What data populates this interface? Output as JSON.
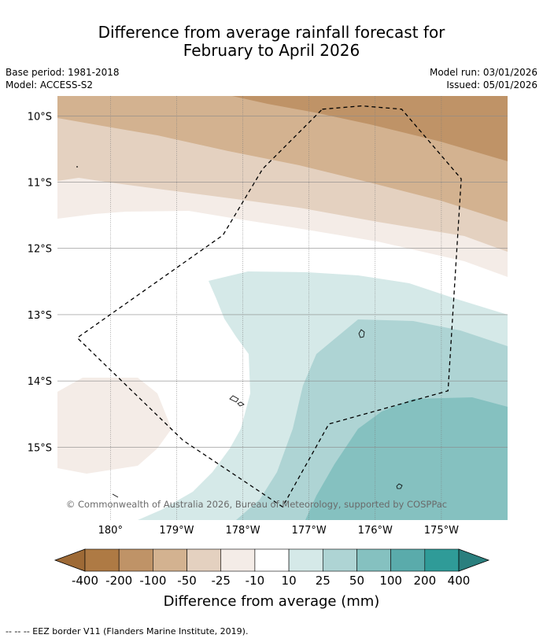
{
  "header": {
    "title_line1": "Difference from average rainfall forecast for",
    "title_line2": "February to April 2026",
    "base_period": "Base period: 1981-2018",
    "model": "Model: ACCESS-S2",
    "model_run": "Model run: 03/01/2026",
    "issued": "Issued: 05/01/2026"
  },
  "chart_data": {
    "type": "heatmap",
    "title": "Difference from average rainfall forecast for February to April 2026",
    "map_extent": {
      "lon_min": -180.8,
      "lon_max": -174.0,
      "lat_max": -9.7,
      "lat_min": -16.1
    },
    "x_ticks": [
      {
        "lon": -180,
        "label": "180°"
      },
      {
        "lon": -179,
        "label": "179°W"
      },
      {
        "lon": -178,
        "label": "178°W"
      },
      {
        "lon": -177,
        "label": "177°W"
      },
      {
        "lon": -176,
        "label": "176°W"
      },
      {
        "lon": -175,
        "label": "175°W"
      }
    ],
    "y_ticks": [
      {
        "lat": -10,
        "label": "10°S"
      },
      {
        "lat": -11,
        "label": "11°S"
      },
      {
        "lat": -12,
        "label": "12°S"
      },
      {
        "lat": -13,
        "label": "13°S"
      },
      {
        "lat": -14,
        "label": "14°S"
      },
      {
        "lat": -15,
        "label": "15°S"
      }
    ],
    "colorbar": {
      "label": "Difference from average (mm)",
      "tick_labels": [
        "-400",
        "-200",
        "-100",
        "-50",
        "-25",
        "-10",
        "10",
        "25",
        "50",
        "100",
        "200",
        "400"
      ],
      "colors": [
        "#9e6a36",
        "#ae7a44",
        "#bf9367",
        "#d3b290",
        "#e4d1c0",
        "#f4ece7",
        "#ffffff",
        "#d5e9e8",
        "#aed4d4",
        "#85c1c0",
        "#5aabab",
        "#2f9b98",
        "#2a7f7e"
      ]
    },
    "regions": [
      {
        "category": "-100 to -50",
        "color": "#bf9367",
        "note": "north-east corner, near 10°S 175°W"
      },
      {
        "category": "-50 to -25",
        "color": "#d3b290",
        "note": "northern band"
      },
      {
        "category": "-25 to -10",
        "color": "#e4d1c0",
        "note": "northern band near 11°S"
      },
      {
        "category": "-10 to 10",
        "color": "#f4ece7",
        "note": "band near 11.5°S and patch near 14.5°S 180°"
      },
      {
        "category": "10 to 25",
        "color": "#d5e9e8",
        "note": "south-central region from 12.5°S"
      },
      {
        "category": "25 to 50",
        "color": "#aed4d4",
        "note": "south-east from 13°S"
      },
      {
        "category": "50 to 100",
        "color": "#85c1c0",
        "note": "south-east corner near 15°S 176°W"
      }
    ],
    "eez_border_lonlat": [
      [
        -176.8,
        -9.9
      ],
      [
        -176.2,
        -9.85
      ],
      [
        -175.6,
        -9.9
      ],
      [
        -174.7,
        -10.95
      ],
      [
        -174.9,
        -14.15
      ],
      [
        -176.7,
        -14.65
      ],
      [
        -177.4,
        -15.9
      ],
      [
        -178.9,
        -14.9
      ],
      [
        -180.5,
        -13.35
      ],
      [
        -178.3,
        -11.8
      ],
      [
        -177.7,
        -10.8
      ]
    ],
    "islands_lonlat": [
      [
        -176.2,
        -13.3
      ],
      [
        -178.1,
        -14.3
      ],
      [
        -175.6,
        -15.6
      ]
    ],
    "attribution": "© Commonwealth of Australia 2026, Bureau of Meteorology, supported by COSPPac"
  },
  "footer": {
    "legend_note": "--  --  -- EEZ border V11 (Flanders Marine Institute, 2019)."
  }
}
